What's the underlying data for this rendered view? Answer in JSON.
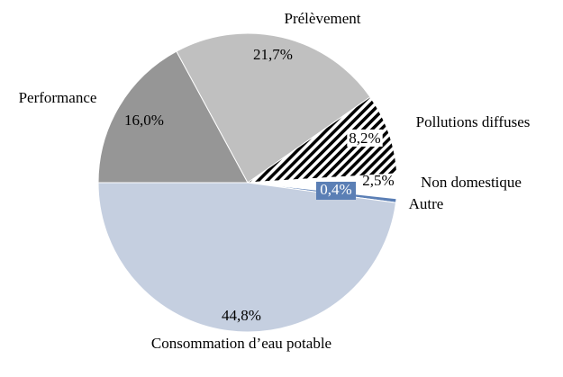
{
  "chart_data": {
    "type": "pie",
    "categories": [
      "Performance",
      "Prélèvement",
      "Pollutions diffuses",
      "Non domestique",
      "Autre",
      "Consommation d’eau potable"
    ],
    "values": [
      16.0,
      21.7,
      8.2,
      2.5,
      0.4,
      44.8
    ],
    "value_labels": [
      "16,0%",
      "21,7%",
      "8,2%",
      "2,5%",
      "0,4%",
      "44,8%"
    ],
    "colors": [
      "#969696",
      "#c0c0c0",
      "#000000",
      "#ffffff",
      "#5b7fb5",
      "#c5cfe0"
    ],
    "patterns": [
      null,
      null,
      "diagonal-hatch",
      null,
      null,
      null
    ],
    "start_angle": 270
  }
}
